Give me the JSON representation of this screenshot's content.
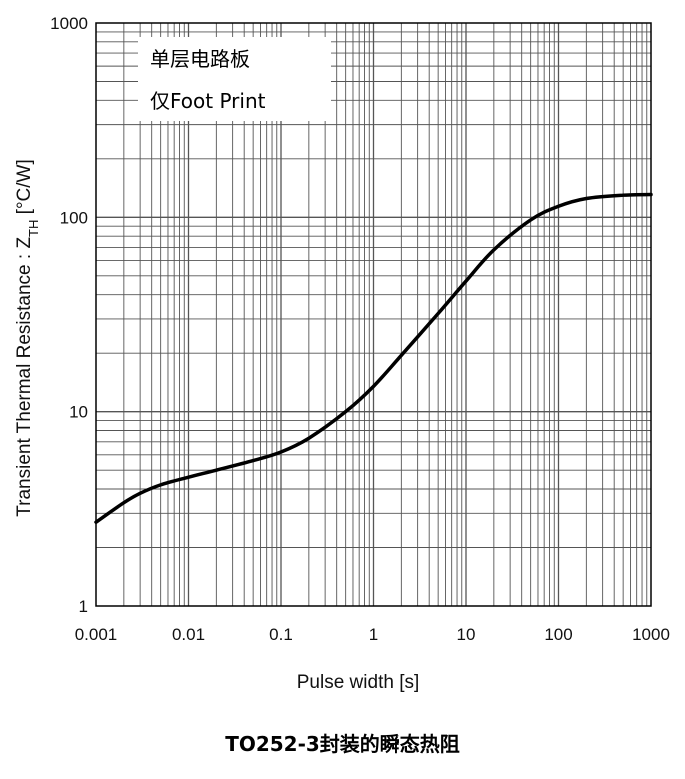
{
  "chart_data": {
    "type": "line",
    "xlabel": "Pulse width [s]",
    "ylabel_prefix": "Transient Thermal Resistance : Z",
    "ylabel_sub": "TH",
    "ylabel_suffix": " [°C/W]",
    "xscale": "log",
    "yscale": "log",
    "xlim": [
      0.001,
      1000
    ],
    "ylim": [
      1,
      1000
    ],
    "x_ticks": [
      "0.001",
      "0.01",
      "0.1",
      "1",
      "10",
      "100",
      "1000"
    ],
    "y_ticks": [
      "1",
      "10",
      "100",
      "1000"
    ],
    "grid": true,
    "annotation_lines": [
      "单层电路板",
      "仅Foot Print"
    ],
    "series": [
      {
        "x": [
          0.001,
          0.002,
          0.003,
          0.005,
          0.01,
          0.02,
          0.05,
          0.1,
          0.2,
          0.5,
          1,
          2,
          5,
          10,
          20,
          50,
          100,
          200,
          500,
          1000
        ],
        "values": [
          2.7,
          3.4,
          3.8,
          4.2,
          4.6,
          5.0,
          5.6,
          6.2,
          7.3,
          10.0,
          13.5,
          19.5,
          32,
          47,
          68,
          97,
          114,
          125,
          130,
          131
        ]
      }
    ]
  },
  "caption": "TO252-3封装的瞬态热阻"
}
